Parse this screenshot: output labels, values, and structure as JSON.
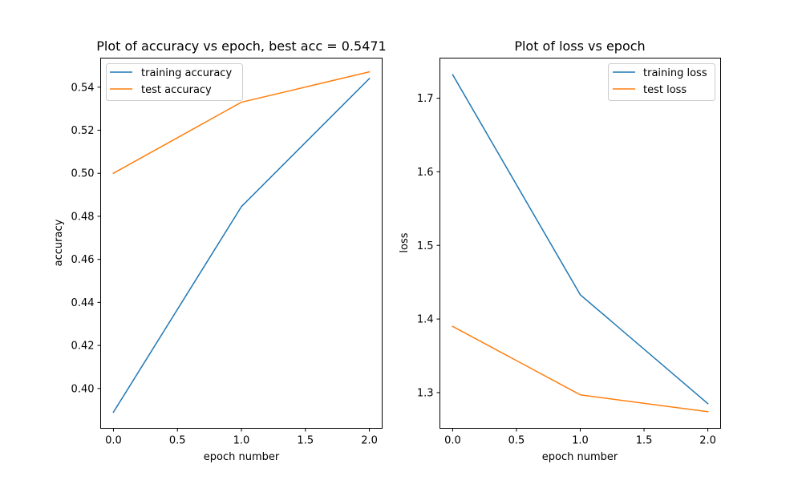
{
  "chart_data": [
    {
      "type": "line",
      "title": "Plot of accuracy vs epoch, best acc = 0.5471",
      "xlabel": "epoch number",
      "ylabel": "accuracy",
      "xlim": [
        -0.1,
        2.1
      ],
      "ylim": [
        0.3815,
        0.5535
      ],
      "x_ticks": [
        0.0,
        0.5,
        1.0,
        1.5,
        2.0
      ],
      "x_tick_labels": [
        "0.0",
        "0.5",
        "1.0",
        "1.5",
        "2.0"
      ],
      "y_ticks": [
        0.4,
        0.42,
        0.44,
        0.46,
        0.48,
        0.5,
        0.52,
        0.54
      ],
      "y_tick_labels": [
        "0.40",
        "0.42",
        "0.44",
        "0.46",
        "0.48",
        "0.50",
        "0.52",
        "0.54"
      ],
      "grid": false,
      "legend": "upper-left",
      "series": [
        {
          "name": "training accuracy",
          "color": "#1f77b4",
          "x": [
            0,
            1,
            2
          ],
          "values": [
            0.389,
            0.4845,
            0.544
          ]
        },
        {
          "name": "test accuracy",
          "color": "#ff7f0e",
          "x": [
            0,
            1,
            2
          ],
          "values": [
            0.5,
            0.533,
            0.5471
          ]
        }
      ]
    },
    {
      "type": "line",
      "title": "Plot of loss vs epoch",
      "xlabel": "epoch number",
      "ylabel": "loss",
      "xlim": [
        -0.1,
        2.1
      ],
      "ylim": [
        1.2515,
        1.7545
      ],
      "x_ticks": [
        0.0,
        0.5,
        1.0,
        1.5,
        2.0
      ],
      "x_tick_labels": [
        "0.0",
        "0.5",
        "1.0",
        "1.5",
        "2.0"
      ],
      "y_ticks": [
        1.3,
        1.4,
        1.5,
        1.6,
        1.7
      ],
      "y_tick_labels": [
        "1.3",
        "1.4",
        "1.5",
        "1.6",
        "1.7"
      ],
      "grid": false,
      "legend": "upper-right",
      "series": [
        {
          "name": "training loss",
          "color": "#1f77b4",
          "x": [
            0,
            1,
            2
          ],
          "values": [
            1.732,
            1.433,
            1.285
          ]
        },
        {
          "name": "test loss",
          "color": "#ff7f0e",
          "x": [
            0,
            1,
            2
          ],
          "values": [
            1.39,
            1.297,
            1.274
          ]
        }
      ]
    }
  ]
}
